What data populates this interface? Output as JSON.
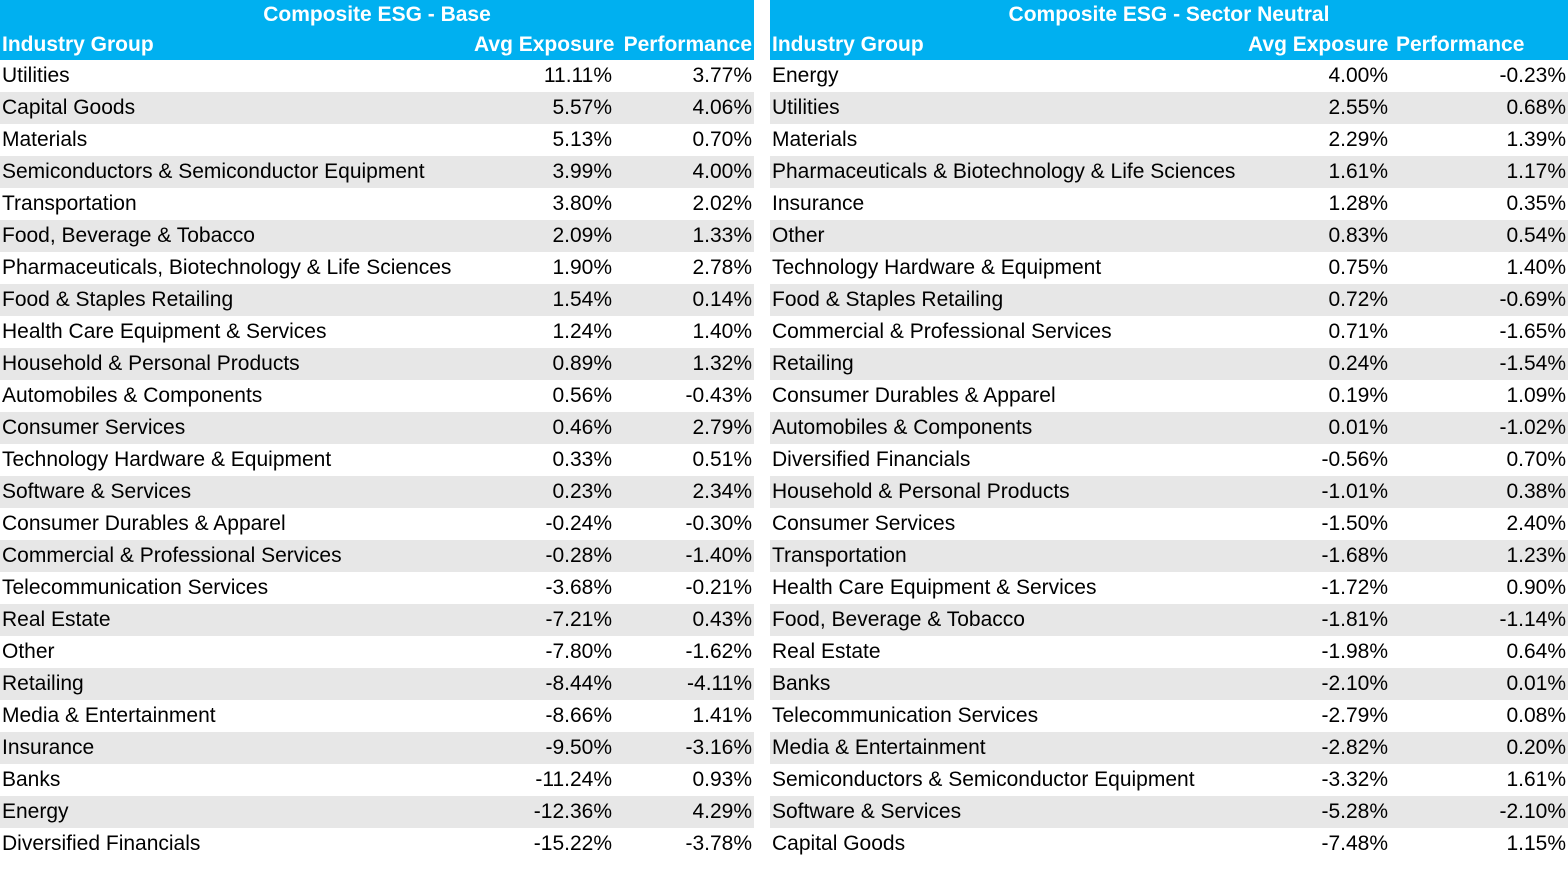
{
  "base": {
    "title": "Composite ESG - Base",
    "headers": {
      "industry": "Industry Group",
      "exposure": "Avg Exposure",
      "performance": "Performance"
    },
    "rows": [
      [
        "Utilities",
        "11.11%",
        "3.77%"
      ],
      [
        "Capital Goods",
        "5.57%",
        "4.06%"
      ],
      [
        "Materials",
        "5.13%",
        "0.70%"
      ],
      [
        "Semiconductors & Semiconductor Equipment",
        "3.99%",
        "4.00%"
      ],
      [
        "Transportation",
        "3.80%",
        "2.02%"
      ],
      [
        "Food, Beverage & Tobacco",
        "2.09%",
        "1.33%"
      ],
      [
        "Pharmaceuticals, Biotechnology & Life Sciences",
        "1.90%",
        "2.78%"
      ],
      [
        "Food & Staples Retailing",
        "1.54%",
        "0.14%"
      ],
      [
        "Health Care Equipment & Services",
        "1.24%",
        "1.40%"
      ],
      [
        "Household & Personal Products",
        "0.89%",
        "1.32%"
      ],
      [
        "Automobiles & Components",
        "0.56%",
        "-0.43%"
      ],
      [
        "Consumer Services",
        "0.46%",
        "2.79%"
      ],
      [
        "Technology Hardware & Equipment",
        "0.33%",
        "0.51%"
      ],
      [
        "Software & Services",
        "0.23%",
        "2.34%"
      ],
      [
        "Consumer Durables & Apparel",
        "-0.24%",
        "-0.30%"
      ],
      [
        "Commercial & Professional Services",
        "-0.28%",
        "-1.40%"
      ],
      [
        "Telecommunication Services",
        "-3.68%",
        "-0.21%"
      ],
      [
        "Real Estate",
        "-7.21%",
        "0.43%"
      ],
      [
        "Other",
        "-7.80%",
        "-1.62%"
      ],
      [
        "Retailing",
        "-8.44%",
        "-4.11%"
      ],
      [
        "Media & Entertainment",
        "-8.66%",
        "1.41%"
      ],
      [
        "Insurance",
        "-9.50%",
        "-3.16%"
      ],
      [
        "Banks",
        "-11.24%",
        "0.93%"
      ],
      [
        "Energy",
        "-12.36%",
        "4.29%"
      ],
      [
        "Diversified Financials",
        "-15.22%",
        "-3.78%"
      ]
    ]
  },
  "sector_neutral": {
    "title": "Composite ESG - Sector Neutral",
    "headers": {
      "industry": "Industry Group",
      "exposure": "Avg Exposure",
      "performance": "Performance"
    },
    "rows": [
      [
        "Energy",
        "4.00%",
        "-0.23%"
      ],
      [
        "Utilities",
        "2.55%",
        "0.68%"
      ],
      [
        "Materials",
        "2.29%",
        "1.39%"
      ],
      [
        "Pharmaceuticals & Biotechnology & Life Sciences",
        "1.61%",
        "1.17%"
      ],
      [
        "Insurance",
        "1.28%",
        "0.35%"
      ],
      [
        "Other",
        "0.83%",
        "0.54%"
      ],
      [
        "Technology Hardware & Equipment",
        "0.75%",
        "1.40%"
      ],
      [
        "Food & Staples Retailing",
        "0.72%",
        "-0.69%"
      ],
      [
        "Commercial & Professional Services",
        "0.71%",
        "-1.65%"
      ],
      [
        "Retailing",
        "0.24%",
        "-1.54%"
      ],
      [
        "Consumer Durables & Apparel",
        "0.19%",
        "1.09%"
      ],
      [
        "Automobiles & Components",
        "0.01%",
        "-1.02%"
      ],
      [
        "Diversified Financials",
        "-0.56%",
        "0.70%"
      ],
      [
        "Household & Personal Products",
        "-1.01%",
        "0.38%"
      ],
      [
        "Consumer Services",
        "-1.50%",
        "2.40%"
      ],
      [
        "Transportation",
        "-1.68%",
        "1.23%"
      ],
      [
        "Health Care Equipment & Services",
        "-1.72%",
        "0.90%"
      ],
      [
        "Food, Beverage & Tobacco",
        "-1.81%",
        "-1.14%"
      ],
      [
        "Real Estate",
        "-1.98%",
        "0.64%"
      ],
      [
        "Banks",
        "-2.10%",
        "0.01%"
      ],
      [
        "Telecommunication Services",
        "-2.79%",
        "0.08%"
      ],
      [
        "Media & Entertainment",
        "-2.82%",
        "0.20%"
      ],
      [
        "Semiconductors & Semiconductor Equipment",
        "-3.32%",
        "1.61%"
      ],
      [
        "Software & Services",
        "-5.28%",
        "-2.10%"
      ],
      [
        "Capital Goods",
        "-7.48%",
        "1.15%"
      ]
    ]
  }
}
